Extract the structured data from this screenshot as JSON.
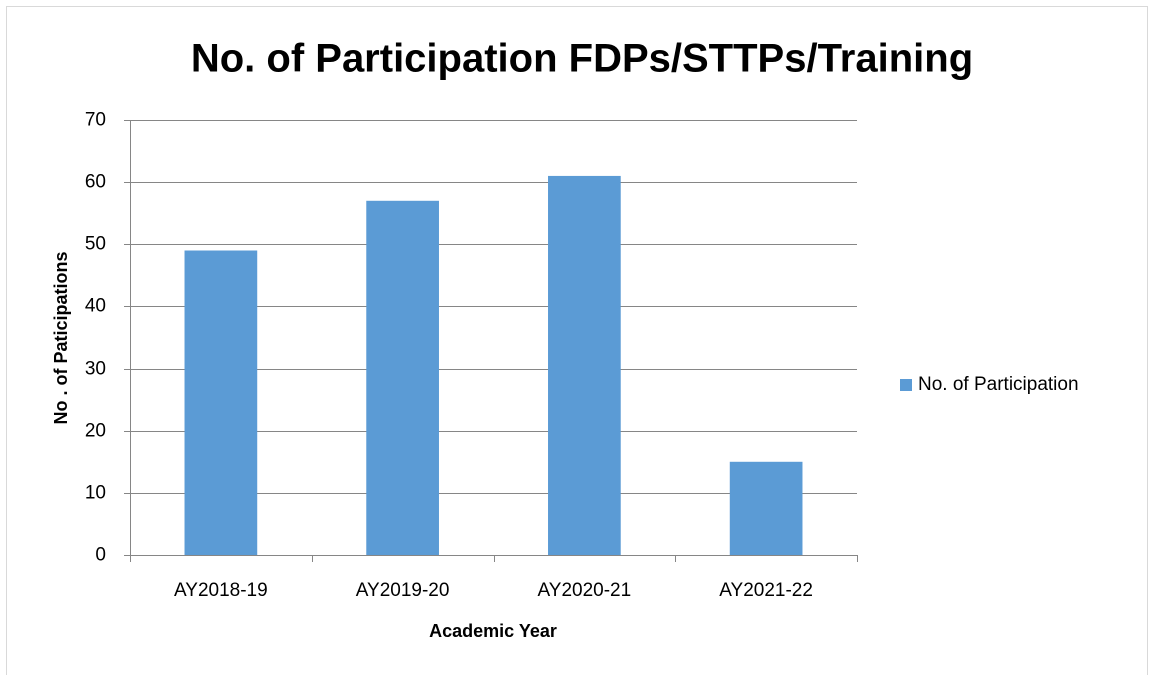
{
  "chart_data": {
    "type": "bar",
    "title": "No. of Participation FDPs/STTPs/Training",
    "x_label": "Academic Year",
    "y_label": "No . of  Paticipations",
    "categories": [
      "AY2018-19",
      "AY2019-20",
      "AY2020-21",
      "AY2021-22"
    ],
    "series": [
      {
        "name": "No. of Participation",
        "color": "#5b9bd5",
        "values": [
          49,
          57,
          61,
          15
        ]
      }
    ],
    "ylim": [
      0,
      70
    ],
    "yticks": [
      0,
      10,
      20,
      30,
      40,
      50,
      60,
      70
    ],
    "grid": true,
    "legend": "right"
  }
}
